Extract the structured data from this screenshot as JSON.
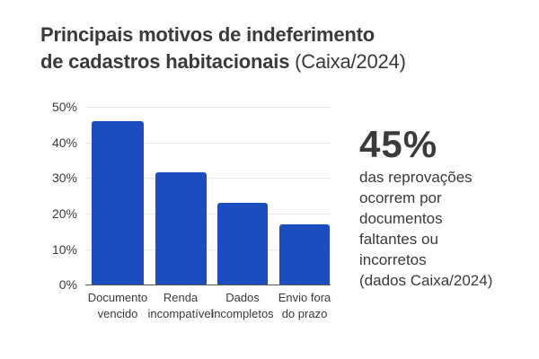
{
  "title": {
    "line1": "Principais motivos de indeferimento",
    "line2_bold": "de cadastros habitacionais",
    "line2_light": " (Caixa/2024)"
  },
  "axis": {
    "ticks": [
      "50%",
      "40%",
      "30%",
      "20%",
      "10%",
      "0%"
    ]
  },
  "bars": [
    {
      "label_line1": "Documento",
      "label_line2": "vencido"
    },
    {
      "label_line1": "Renda",
      "label_line2": "incompatível"
    },
    {
      "label_line1": "Dados",
      "label_line2": "incompletos"
    },
    {
      "label_line1": "Envio fora",
      "label_line2": "do prazo"
    }
  ],
  "callout": {
    "value": "45%",
    "line1": "das reprovações",
    "line2": "ocorrem por",
    "line3": "documentos",
    "line4": "faltantes ou",
    "line5": "incorretos",
    "line6": "(dados Caixa/2024)"
  },
  "colors": {
    "bar": "#1a4dbf",
    "text": "#3a3a3a",
    "grid": "#e6e6e6"
  },
  "chart_data": {
    "type": "bar",
    "title": "Principais motivos de indeferimento de cadastros habitacionais (Caixa/2024)",
    "categories": [
      "Documento vencido",
      "Renda incompatível",
      "Dados incompletos",
      "Envio fora do prazo"
    ],
    "values": [
      46,
      31.5,
      23,
      17
    ],
    "xlabel": "",
    "ylabel": "",
    "ylim": [
      0,
      50
    ],
    "yticks": [
      0,
      10,
      20,
      30,
      40,
      50
    ],
    "ytick_format": "%",
    "grid": true,
    "legend": null,
    "annotations": [
      "45% das reprovações ocorrem por documentos faltantes ou incorretos (dados Caixa/2024)"
    ]
  }
}
